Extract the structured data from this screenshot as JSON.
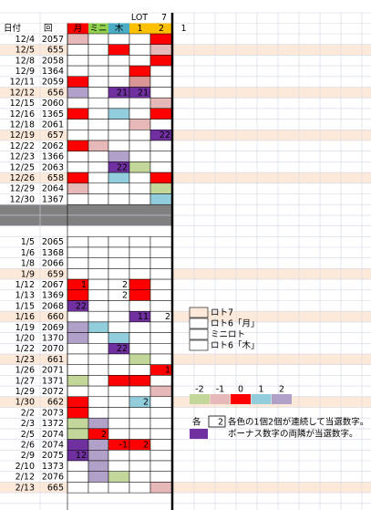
{
  "header": {
    "top": [
      "LOT",
      "7"
    ],
    "columns": [
      {
        "text": "日付",
        "color": null
      },
      {
        "text": "回",
        "color": null
      },
      {
        "text": "月",
        "color": "#ff0000"
      },
      {
        "text": "ミニ",
        "color": "#92d050"
      },
      {
        "text": "木",
        "color": "#4bacc6"
      },
      {
        "text": "1",
        "color": "#ffc000"
      },
      {
        "text": "2",
        "color": "#ffc000"
      },
      {
        "text": "1",
        "color": null
      }
    ]
  },
  "rows": [
    {
      "date": "12/4",
      "round": "2057",
      "fill": null,
      "cells": [
        "#e6b8b7",
        null,
        null,
        null,
        "#ff0000"
      ],
      "labels": [
        null,
        null,
        null,
        null,
        null
      ]
    },
    {
      "date": "12/5",
      "round": "655",
      "fill": "#fde9d9",
      "cells": [
        null,
        null,
        "#ff0000",
        null,
        "#e6b8b7"
      ],
      "labels": [
        null,
        null,
        null,
        null,
        null
      ]
    },
    {
      "date": "12/8",
      "round": "2058",
      "fill": null,
      "cells": [
        null,
        null,
        null,
        null,
        "#ff0000"
      ],
      "labels": [
        null,
        null,
        null,
        null,
        null
      ]
    },
    {
      "date": "12/9",
      "round": "1364",
      "fill": null,
      "cells": [
        null,
        null,
        null,
        "#ff0000",
        null
      ],
      "labels": [
        null,
        null,
        null,
        null,
        null
      ]
    },
    {
      "date": "12/11",
      "round": "2059",
      "fill": null,
      "cells": [
        "#ff0000",
        null,
        null,
        "#da9694",
        null
      ],
      "labels": [
        null,
        null,
        null,
        null,
        null
      ]
    },
    {
      "date": "12/12",
      "round": "656",
      "fill": "#fde9d9",
      "cells": [
        "#b1a0c7",
        null,
        "#7030a0",
        "#7030a0",
        null
      ],
      "labels": [
        null,
        null,
        "21",
        "21",
        null
      ]
    },
    {
      "date": "12/15",
      "round": "2060",
      "fill": null,
      "cells": [
        null,
        null,
        null,
        null,
        "#e6b8b7"
      ],
      "labels": [
        null,
        null,
        null,
        null,
        null
      ]
    },
    {
      "date": "12/16",
      "round": "1365",
      "fill": null,
      "cells": [
        "#ff0000",
        null,
        "#92cddc",
        null,
        "#ff0000"
      ],
      "labels": [
        null,
        null,
        null,
        null,
        null
      ]
    },
    {
      "date": "12/18",
      "round": "2061",
      "fill": null,
      "cells": [
        null,
        null,
        null,
        "#e6b8b7",
        null
      ],
      "labels": [
        null,
        null,
        null,
        null,
        null
      ]
    },
    {
      "date": "12/19",
      "round": "657",
      "fill": "#fde9d9",
      "cells": [
        null,
        null,
        null,
        null,
        "#7030a0"
      ],
      "labels": [
        null,
        null,
        null,
        null,
        "22"
      ]
    },
    {
      "date": "12/22",
      "round": "2062",
      "fill": null,
      "cells": [
        "#ff0000",
        "#e6b8b7",
        null,
        null,
        null
      ],
      "labels": [
        null,
        null,
        null,
        null,
        null
      ]
    },
    {
      "date": "12/23",
      "round": "1366",
      "fill": null,
      "cells": [
        null,
        null,
        "#b1a0c7",
        null,
        null
      ],
      "labels": [
        null,
        null,
        null,
        null,
        null
      ]
    },
    {
      "date": "12/25",
      "round": "2063",
      "fill": null,
      "cells": [
        null,
        null,
        "#7030a0",
        "#c4d79b",
        null
      ],
      "labels": [
        null,
        null,
        "22",
        null,
        null
      ]
    },
    {
      "date": "12/26",
      "round": "658",
      "fill": "#fde9d9",
      "cells": [
        "#ff0000",
        null,
        "#92cddc",
        null,
        "#ff0000"
      ],
      "labels": [
        null,
        null,
        null,
        null,
        null
      ]
    },
    {
      "date": "12/29",
      "round": "2064",
      "fill": null,
      "cells": [
        "#e6b8b7",
        null,
        null,
        null,
        "#c4d79b"
      ],
      "labels": [
        null,
        null,
        null,
        null,
        null
      ]
    },
    {
      "date": "12/30",
      "round": "1367",
      "fill": null,
      "cells": [
        null,
        null,
        null,
        null,
        "#92cddc"
      ],
      "labels": [
        null,
        null,
        null,
        null,
        null
      ]
    },
    {
      "date": "1/5",
      "round": "2065",
      "fill": null,
      "cells": [
        null,
        null,
        null,
        null,
        null
      ],
      "labels": [
        null,
        null,
        null,
        null,
        null
      ]
    },
    {
      "date": "1/6",
      "round": "1368",
      "fill": null,
      "cells": [
        null,
        null,
        null,
        null,
        null
      ],
      "labels": [
        null,
        null,
        null,
        null,
        null
      ]
    },
    {
      "date": "1/8",
      "round": "2066",
      "fill": null,
      "cells": [
        null,
        null,
        null,
        null,
        null
      ],
      "labels": [
        null,
        null,
        null,
        null,
        null
      ]
    },
    {
      "date": "1/9",
      "round": "659",
      "fill": "#fde9d9",
      "cells": [
        null,
        null,
        null,
        null,
        null
      ],
      "labels": [
        null,
        null,
        null,
        null,
        null
      ]
    },
    {
      "date": "1/12",
      "round": "2067",
      "fill": null,
      "cells": [
        "#ff0000",
        null,
        null,
        "#ff0000",
        null
      ],
      "labels": [
        "1",
        null,
        "2",
        null,
        null
      ]
    },
    {
      "date": "1/13",
      "round": "1369",
      "fill": null,
      "cells": [
        "#ff0000",
        null,
        null,
        "#ff0000",
        null
      ],
      "labels": [
        null,
        null,
        "2",
        null,
        null
      ]
    },
    {
      "date": "1/15",
      "round": "2068",
      "fill": null,
      "cells": [
        "#7030a0",
        null,
        null,
        null,
        null
      ],
      "labels": [
        "22",
        null,
        null,
        null,
        null
      ]
    },
    {
      "date": "1/16",
      "round": "660",
      "fill": "#fde9d9",
      "cells": [
        null,
        null,
        null,
        "#7030a0",
        null
      ],
      "labels": [
        null,
        null,
        null,
        "11",
        "2"
      ]
    },
    {
      "date": "1/19",
      "round": "2069",
      "fill": null,
      "cells": [
        "#b1a0c7",
        "#92cddc",
        null,
        null,
        null
      ],
      "labels": [
        null,
        null,
        null,
        null,
        null
      ]
    },
    {
      "date": "1/20",
      "round": "1370",
      "fill": null,
      "cells": [
        "#b1a0c7",
        null,
        "#92cddc",
        null,
        null
      ],
      "labels": [
        null,
        null,
        null,
        null,
        null
      ]
    },
    {
      "date": "1/22",
      "round": "2070",
      "fill": null,
      "cells": [
        null,
        null,
        "#7030a0",
        null,
        null
      ],
      "labels": [
        null,
        null,
        "22",
        null,
        null
      ]
    },
    {
      "date": "1/23",
      "round": "661",
      "fill": "#fde9d9",
      "cells": [
        null,
        null,
        null,
        "#c4d79b",
        null
      ],
      "labels": [
        null,
        null,
        null,
        null,
        null
      ]
    },
    {
      "date": "1/26",
      "round": "2071",
      "fill": null,
      "cells": [
        null,
        null,
        null,
        null,
        "#ff0000"
      ],
      "labels": [
        null,
        null,
        null,
        null,
        "1"
      ]
    },
    {
      "date": "1/27",
      "round": "1371",
      "fill": null,
      "cells": [
        "#c4d79b",
        null,
        "#ff0000",
        "#ff0000",
        null
      ],
      "labels": [
        null,
        null,
        null,
        null,
        null
      ]
    },
    {
      "date": "1/29",
      "round": "2072",
      "fill": null,
      "cells": [
        null,
        null,
        null,
        null,
        "#e6b8b7"
      ],
      "labels": [
        null,
        null,
        null,
        null,
        null
      ]
    },
    {
      "date": "1/30",
      "round": "662",
      "fill": "#fde9d9",
      "cells": [
        "#ff0000",
        null,
        null,
        "#92cddc",
        null
      ],
      "labels": [
        null,
        null,
        null,
        "2",
        null
      ]
    },
    {
      "date": "2/2",
      "round": "2073",
      "fill": null,
      "cells": [
        "#ff0000",
        null,
        null,
        null,
        null
      ],
      "labels": [
        null,
        null,
        null,
        null,
        null
      ]
    },
    {
      "date": "2/3",
      "round": "1372",
      "fill": null,
      "cells": [
        "#c4d79b",
        "#b1a0c7",
        null,
        null,
        null
      ],
      "labels": [
        null,
        null,
        null,
        null,
        null
      ]
    },
    {
      "date": "2/5",
      "round": "2074",
      "fill": null,
      "cells": [
        "#c4d79b",
        "#ff0000",
        null,
        null,
        null
      ],
      "labels": [
        null,
        "2",
        null,
        null,
        null
      ]
    },
    {
      "date": "2/6",
      "round": "2074",
      "fill": null,
      "cells": [
        "#7030a0",
        "#b1a0c7",
        "#ff0000",
        "#ff0000",
        null
      ],
      "labels": [
        null,
        null,
        "-1",
        "2",
        null
      ]
    },
    {
      "date": "2/9",
      "round": "2075",
      "fill": null,
      "cells": [
        "#7030a0",
        "#b1a0c7",
        null,
        null,
        null
      ],
      "labels": [
        "12",
        null,
        null,
        null,
        null
      ]
    },
    {
      "date": "2/10",
      "round": "1373",
      "fill": null,
      "cells": [
        null,
        "#b1a0c7",
        null,
        null,
        null
      ],
      "labels": [
        null,
        null,
        null,
        null,
        null
      ]
    },
    {
      "date": "2/12",
      "round": "2076",
      "fill": null,
      "cells": [
        null,
        "#b1a0c7",
        "#c4d79b",
        null,
        null
      ],
      "labels": [
        null,
        null,
        null,
        null,
        null
      ]
    },
    {
      "date": "2/13",
      "round": "665",
      "fill": "#fde9d9",
      "cells": [
        null,
        null,
        null,
        null,
        "#e6b8b7"
      ],
      "labels": [
        null,
        null,
        null,
        null,
        null
      ]
    }
  ],
  "legend": [
    {
      "label": "ロト7",
      "color": "#fde9d9"
    },
    {
      "label": "ロト6「月」",
      "color": "#ffffff"
    },
    {
      "label": "ミニロト",
      "color": "#ffffff"
    },
    {
      "label": "ロト6「木」",
      "color": "#ffffff"
    }
  ],
  "scale": {
    "values": [
      -2,
      -1,
      0,
      1,
      2
    ],
    "colors": [
      "#c4d79b",
      "#e6b8b7",
      "#ff0000",
      "#92cddc",
      "#b1a0c7"
    ]
  },
  "notes": [
    {
      "prefix": "各",
      "box": "2",
      "text": "各色の1個2個が連続して当選数字。"
    },
    {
      "color": "#7030a0",
      "text": "ボーナス数字の両隣が当選数字。"
    }
  ]
}
